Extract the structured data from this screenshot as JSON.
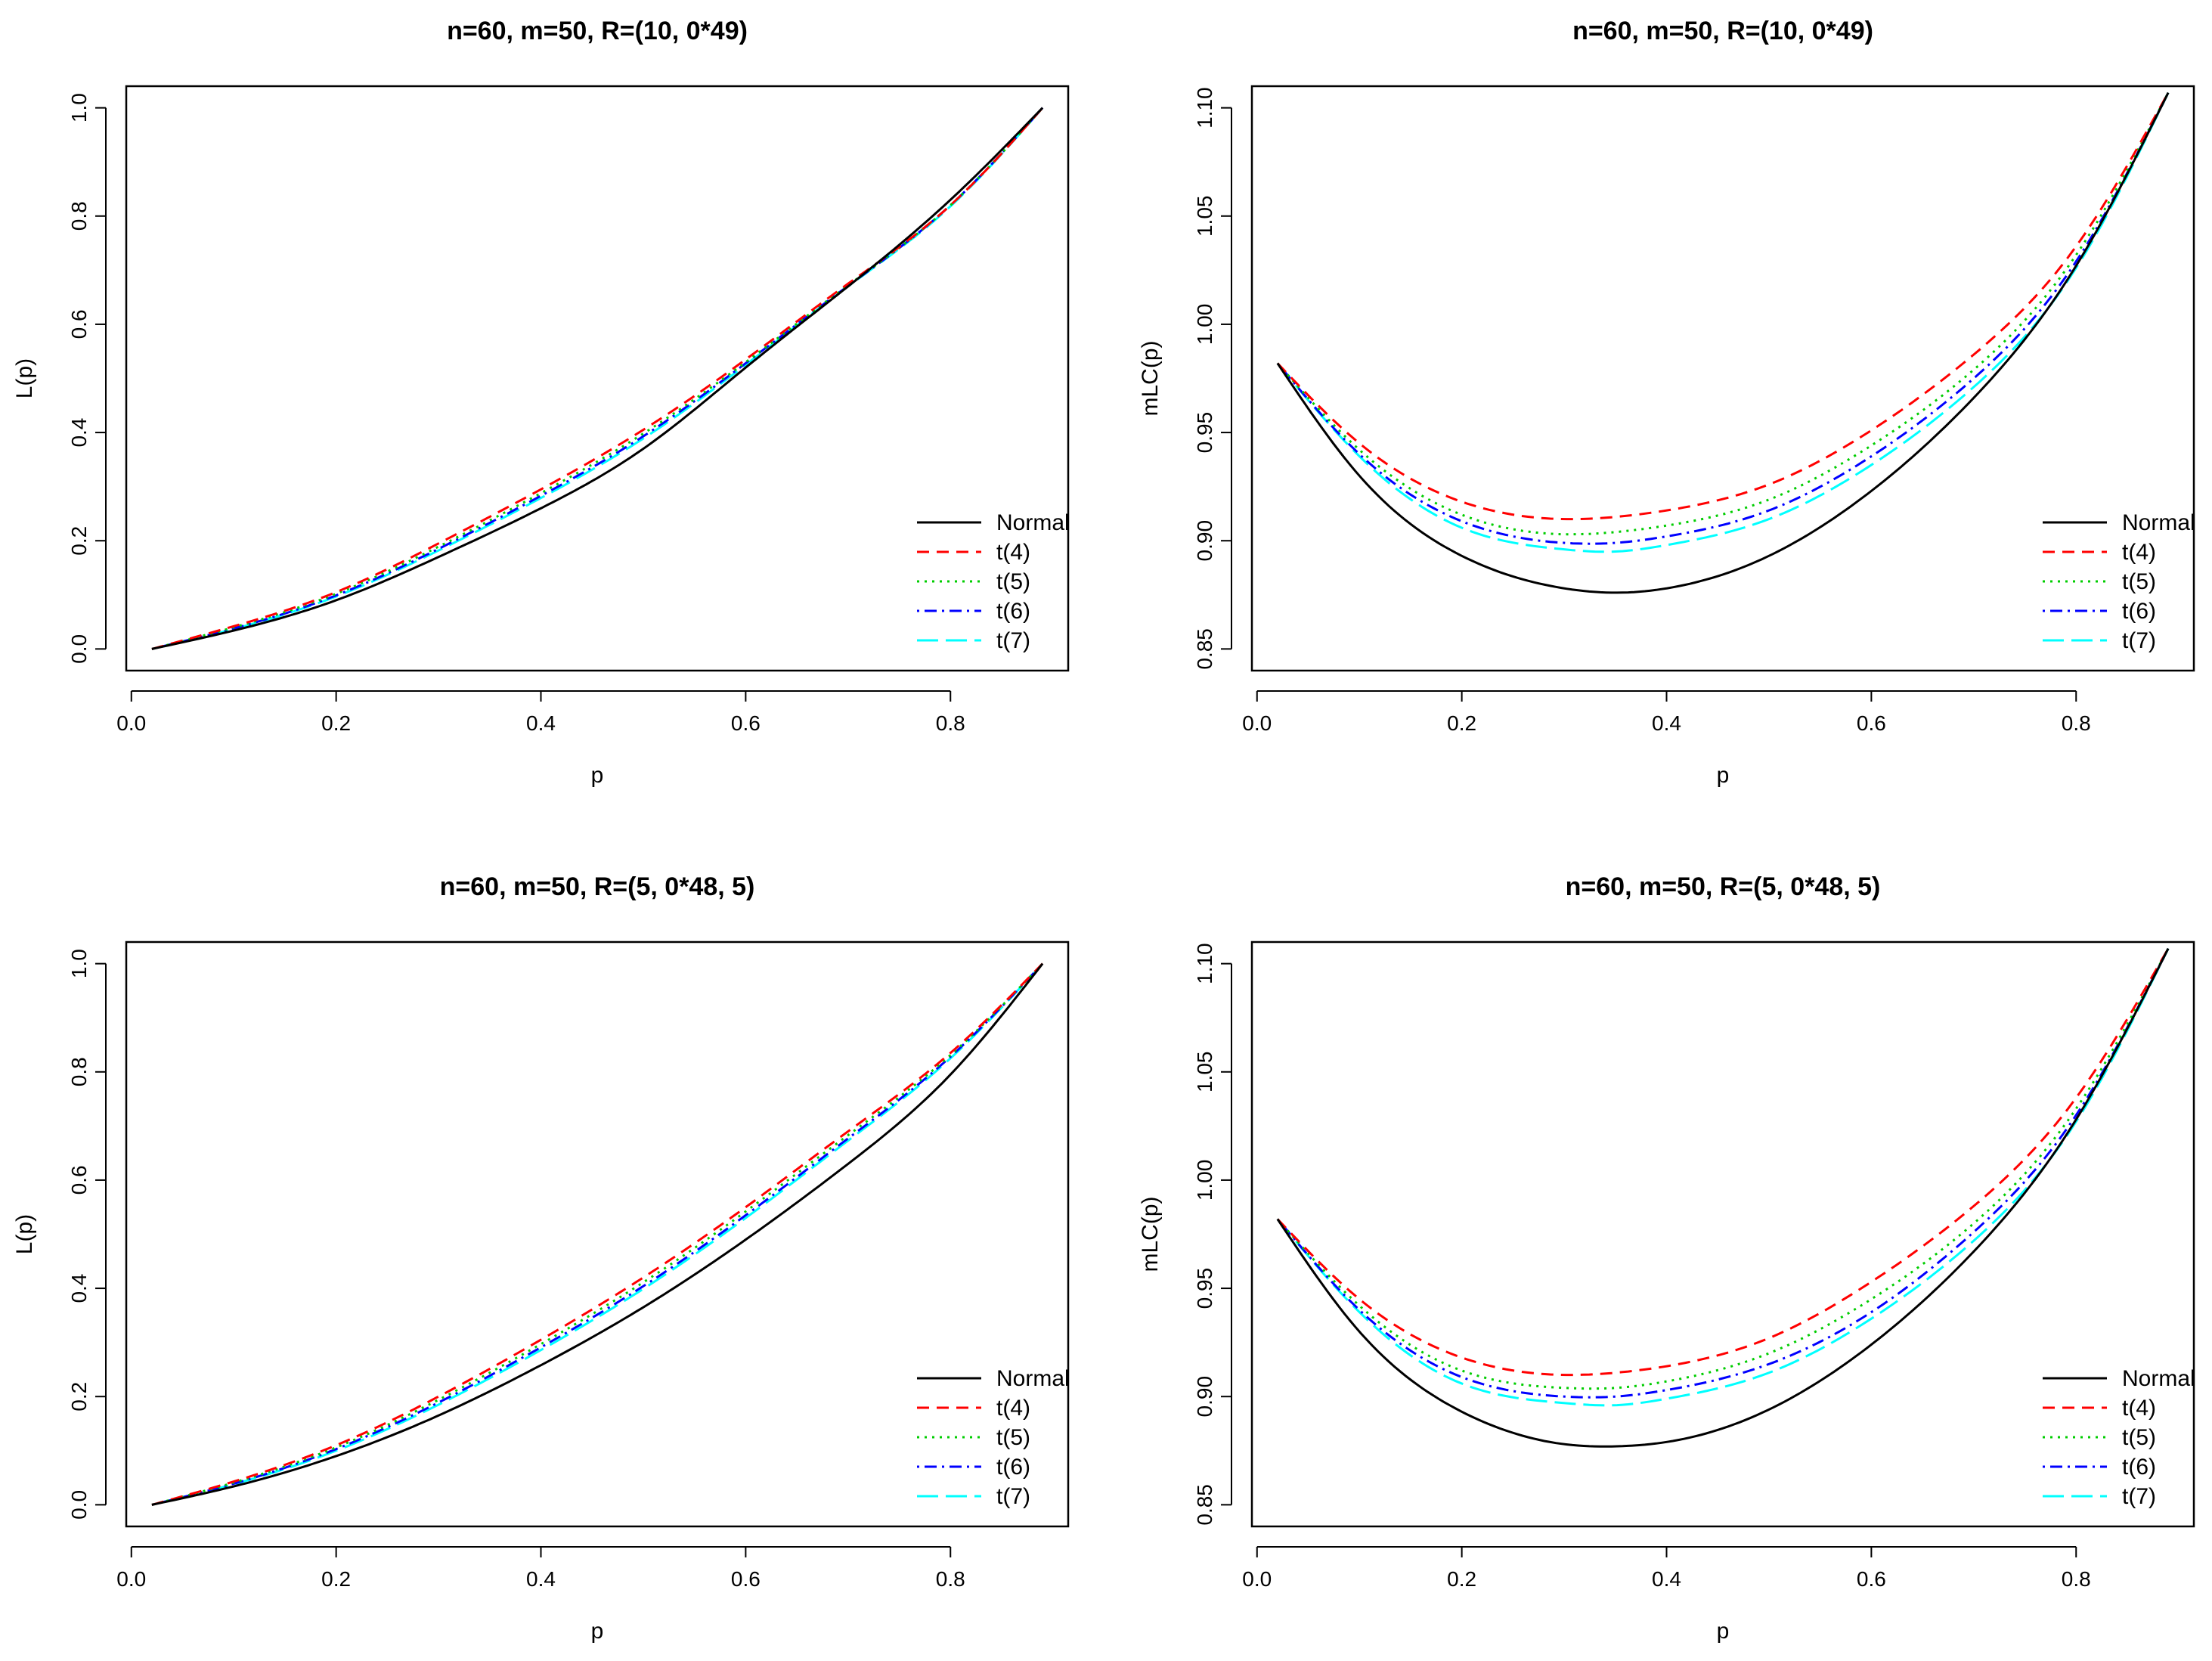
{
  "figure": {
    "series_styles": [
      {
        "name": "Normal",
        "color": "#000000",
        "dash": ""
      },
      {
        "name": "t(4)",
        "color": "#FF0000",
        "dash": "16,10"
      },
      {
        "name": "t(5)",
        "color": "#00CD00",
        "dash": "3,7"
      },
      {
        "name": "t(6)",
        "color": "#0000FF",
        "dash": "3,7,16,7"
      },
      {
        "name": "t(7)",
        "color": "#00FFFF",
        "dash": "28,10"
      }
    ]
  },
  "chart_data": [
    {
      "type": "line",
      "title": "n=60, m=50, R=(10, 0*49)",
      "xlabel": "p",
      "ylabel": "L(p)",
      "xlim": [
        -0.005,
        0.915
      ],
      "ylim": [
        -0.04,
        1.04
      ],
      "xticks": [
        0.0,
        0.2,
        0.4,
        0.6,
        0.8
      ],
      "xtick_labels": [
        "0.0",
        "0.2",
        "0.4",
        "0.6",
        "0.8"
      ],
      "yticks": [
        0.0,
        0.2,
        0.4,
        0.6,
        0.8,
        1.0
      ],
      "ytick_labels": [
        "0.0",
        "0.2",
        "0.4",
        "0.6",
        "0.8",
        "1.0"
      ],
      "legend": [
        "Normal",
        "t(4)",
        "t(5)",
        "t(6)",
        "t(7)"
      ],
      "legend_position": "bottom-right",
      "x": [
        0.02,
        0.1,
        0.2,
        0.3,
        0.4,
        0.5,
        0.6,
        0.7,
        0.8,
        0.89
      ],
      "series": [
        {
          "name": "Normal",
          "values": [
            0.0,
            0.034,
            0.09,
            0.17,
            0.26,
            0.37,
            0.52,
            0.67,
            0.83,
            1.0
          ]
        },
        {
          "name": "t(4)",
          "values": [
            0.0,
            0.042,
            0.105,
            0.195,
            0.295,
            0.405,
            0.535,
            0.675,
            0.82,
            1.0
          ]
        },
        {
          "name": "t(5)",
          "values": [
            0.0,
            0.04,
            0.102,
            0.189,
            0.288,
            0.398,
            0.53,
            0.672,
            0.82,
            1.0
          ]
        },
        {
          "name": "t(6)",
          "values": [
            0.0,
            0.038,
            0.099,
            0.185,
            0.283,
            0.393,
            0.528,
            0.671,
            0.82,
            1.0
          ]
        },
        {
          "name": "t(7)",
          "values": [
            0.0,
            0.037,
            0.097,
            0.182,
            0.279,
            0.389,
            0.525,
            0.67,
            0.818,
            1.0
          ]
        }
      ]
    },
    {
      "type": "line",
      "title": "n=60, m=50, R=(10, 0*49)",
      "xlabel": "p",
      "ylabel": "mLC(p)",
      "xlim": [
        -0.005,
        0.915
      ],
      "ylim": [
        0.84,
        1.11
      ],
      "xticks": [
        0.0,
        0.2,
        0.4,
        0.6,
        0.8
      ],
      "xtick_labels": [
        "0.0",
        "0.2",
        "0.4",
        "0.6",
        "0.8"
      ],
      "yticks": [
        0.85,
        0.9,
        0.95,
        1.0,
        1.05,
        1.1
      ],
      "ytick_labels": [
        "0.85",
        "0.90",
        "0.95",
        "1.00",
        "1.05",
        "1.10"
      ],
      "legend": [
        "Normal",
        "t(4)",
        "t(5)",
        "t(6)",
        "t(7)"
      ],
      "legend_position": "bottom-right",
      "x": [
        0.02,
        0.1,
        0.2,
        0.3,
        0.35,
        0.4,
        0.5,
        0.6,
        0.7,
        0.8,
        0.89
      ],
      "series": [
        {
          "name": "Normal",
          "values": [
            0.982,
            0.93,
            0.893,
            0.878,
            0.876,
            0.878,
            0.893,
            0.923,
            0.966,
            1.027,
            1.107
          ]
        },
        {
          "name": "t(4)",
          "values": [
            0.982,
            0.945,
            0.918,
            0.91,
            0.911,
            0.914,
            0.926,
            0.951,
            0.986,
            1.036,
            1.107
          ]
        },
        {
          "name": "t(5)",
          "values": [
            0.982,
            0.942,
            0.912,
            0.903,
            0.904,
            0.907,
            0.919,
            0.944,
            0.979,
            1.032,
            1.107
          ]
        },
        {
          "name": "t(6)",
          "values": [
            0.982,
            0.94,
            0.909,
            0.899,
            0.899,
            0.902,
            0.914,
            0.939,
            0.975,
            1.029,
            1.107
          ]
        },
        {
          "name": "t(7)",
          "values": [
            0.982,
            0.939,
            0.906,
            0.896,
            0.895,
            0.898,
            0.91,
            0.935,
            0.971,
            1.026,
            1.107
          ]
        }
      ]
    },
    {
      "type": "line",
      "title": "n=60, m=50, R=(5, 0*48, 5)",
      "xlabel": "p",
      "ylabel": "L(p)",
      "xlim": [
        -0.005,
        0.915
      ],
      "ylim": [
        -0.04,
        1.04
      ],
      "xticks": [
        0.0,
        0.2,
        0.4,
        0.6,
        0.8
      ],
      "xtick_labels": [
        "0.0",
        "0.2",
        "0.4",
        "0.6",
        "0.8"
      ],
      "yticks": [
        0.0,
        0.2,
        0.4,
        0.6,
        0.8,
        1.0
      ],
      "ytick_labels": [
        "0.0",
        "0.2",
        "0.4",
        "0.6",
        "0.8",
        "1.0"
      ],
      "legend": [
        "Normal",
        "t(4)",
        "t(5)",
        "t(6)",
        "t(7)"
      ],
      "legend_position": "bottom-right",
      "x": [
        0.02,
        0.1,
        0.2,
        0.3,
        0.4,
        0.5,
        0.6,
        0.7,
        0.8,
        0.89
      ],
      "series": [
        {
          "name": "Normal",
          "values": [
            0.0,
            0.034,
            0.09,
            0.165,
            0.258,
            0.365,
            0.49,
            0.63,
            0.795,
            1.0
          ]
        },
        {
          "name": "t(4)",
          "values": [
            0.0,
            0.043,
            0.11,
            0.2,
            0.305,
            0.42,
            0.55,
            0.69,
            0.835,
            1.0
          ]
        },
        {
          "name": "t(5)",
          "values": [
            0.0,
            0.041,
            0.106,
            0.194,
            0.297,
            0.411,
            0.542,
            0.683,
            0.831,
            1.0
          ]
        },
        {
          "name": "t(6)",
          "values": [
            0.0,
            0.039,
            0.103,
            0.189,
            0.291,
            0.404,
            0.535,
            0.677,
            0.828,
            1.0
          ]
        },
        {
          "name": "t(7)",
          "values": [
            0.0,
            0.038,
            0.1,
            0.185,
            0.286,
            0.399,
            0.53,
            0.673,
            0.825,
            1.0
          ]
        }
      ]
    },
    {
      "type": "line",
      "title": "n=60, m=50, R=(5, 0*48, 5)",
      "xlabel": "p",
      "ylabel": "mLC(p)",
      "xlim": [
        -0.005,
        0.915
      ],
      "ylim": [
        0.84,
        1.11
      ],
      "xticks": [
        0.0,
        0.2,
        0.4,
        0.6,
        0.8
      ],
      "xtick_labels": [
        "0.0",
        "0.2",
        "0.4",
        "0.6",
        "0.8"
      ],
      "yticks": [
        0.85,
        0.9,
        0.95,
        1.0,
        1.05,
        1.1
      ],
      "ytick_labels": [
        "0.85",
        "0.90",
        "0.95",
        "1.00",
        "1.05",
        "1.10"
      ],
      "legend": [
        "Normal",
        "t(4)",
        "t(5)",
        "t(6)",
        "t(7)"
      ],
      "legend_position": "bottom-right",
      "x": [
        0.02,
        0.1,
        0.2,
        0.3,
        0.35,
        0.4,
        0.5,
        0.6,
        0.7,
        0.8,
        0.89
      ],
      "series": [
        {
          "name": "Normal",
          "values": [
            0.982,
            0.93,
            0.893,
            0.878,
            0.877,
            0.879,
            0.894,
            0.924,
            0.967,
            1.028,
            1.107
          ]
        },
        {
          "name": "t(4)",
          "values": [
            0.982,
            0.945,
            0.918,
            0.91,
            0.911,
            0.914,
            0.927,
            0.953,
            0.988,
            1.038,
            1.107
          ]
        },
        {
          "name": "t(5)",
          "values": [
            0.982,
            0.942,
            0.912,
            0.904,
            0.904,
            0.907,
            0.92,
            0.945,
            0.98,
            1.033,
            1.107
          ]
        },
        {
          "name": "t(6)",
          "values": [
            0.982,
            0.94,
            0.909,
            0.9,
            0.9,
            0.903,
            0.915,
            0.939,
            0.976,
            1.03,
            1.107
          ]
        },
        {
          "name": "t(7)",
          "values": [
            0.982,
            0.939,
            0.906,
            0.897,
            0.896,
            0.899,
            0.911,
            0.936,
            0.972,
            1.027,
            1.107
          ]
        }
      ]
    }
  ]
}
